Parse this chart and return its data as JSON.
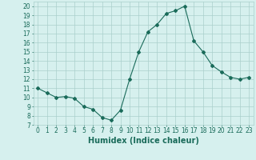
{
  "x": [
    0,
    1,
    2,
    3,
    4,
    5,
    6,
    7,
    8,
    9,
    10,
    11,
    12,
    13,
    14,
    15,
    16,
    17,
    18,
    19,
    20,
    21,
    22,
    23
  ],
  "y": [
    11.0,
    10.5,
    10.0,
    10.1,
    9.9,
    9.0,
    8.7,
    7.8,
    7.5,
    8.6,
    12.0,
    15.0,
    17.2,
    18.0,
    19.2,
    19.5,
    20.0,
    16.2,
    15.0,
    13.5,
    12.8,
    12.2,
    12.0,
    12.2
  ],
  "line_color": "#1a6b5a",
  "marker": "D",
  "marker_size": 2,
  "bg_color": "#d6f0ee",
  "grid_color": "#aacfcc",
  "xlabel": "Humidex (Indice chaleur)",
  "ylim": [
    7,
    20.5
  ],
  "xlim": [
    -0.5,
    23.5
  ],
  "yticks": [
    7,
    8,
    9,
    10,
    11,
    12,
    13,
    14,
    15,
    16,
    17,
    18,
    19,
    20
  ],
  "xticks": [
    0,
    1,
    2,
    3,
    4,
    5,
    6,
    7,
    8,
    9,
    10,
    11,
    12,
    13,
    14,
    15,
    16,
    17,
    18,
    19,
    20,
    21,
    22,
    23
  ],
  "tick_fontsize": 5.5,
  "xlabel_fontsize": 7,
  "tick_color": "#1a6b5a",
  "xlabel_color": "#1a6b5a"
}
